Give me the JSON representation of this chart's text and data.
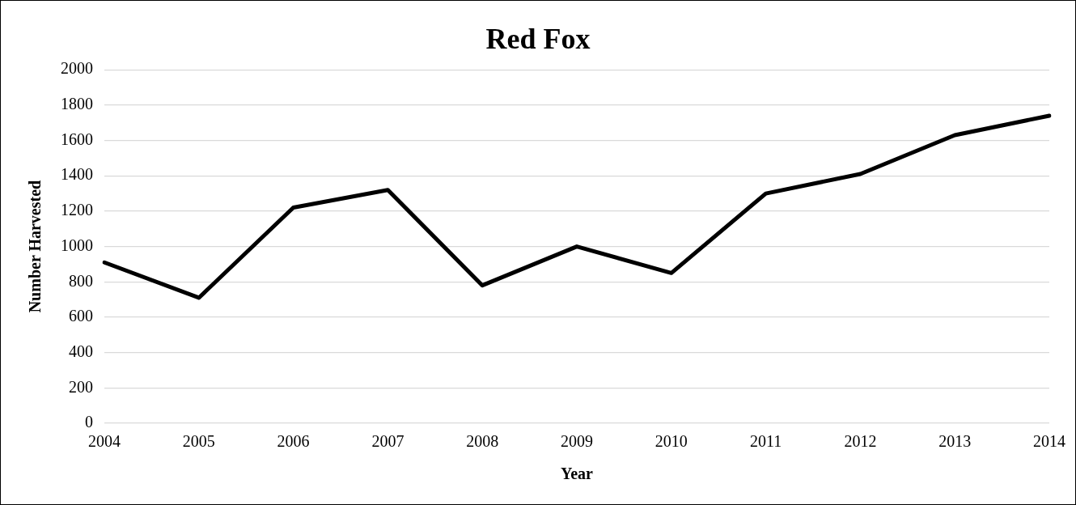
{
  "chart_data": {
    "type": "line",
    "title": "Red Fox",
    "xlabel": "Year",
    "ylabel": "Number Harvested",
    "categories": [
      "2004",
      "2005",
      "2006",
      "2007",
      "2008",
      "2009",
      "2010",
      "2011",
      "2012",
      "2013",
      "2014"
    ],
    "series": [
      {
        "color": "#000000",
        "values": [
          910,
          710,
          1220,
          1320,
          780,
          1000,
          850,
          1300,
          1410,
          1630,
          1740
        ]
      }
    ],
    "ylim": [
      0,
      2000
    ],
    "yticks": [
      0,
      200,
      400,
      600,
      800,
      1000,
      1200,
      1400,
      1600,
      1800,
      2000
    ],
    "grid": "y",
    "legend": false,
    "marker": "none",
    "line_style": "solid"
  }
}
